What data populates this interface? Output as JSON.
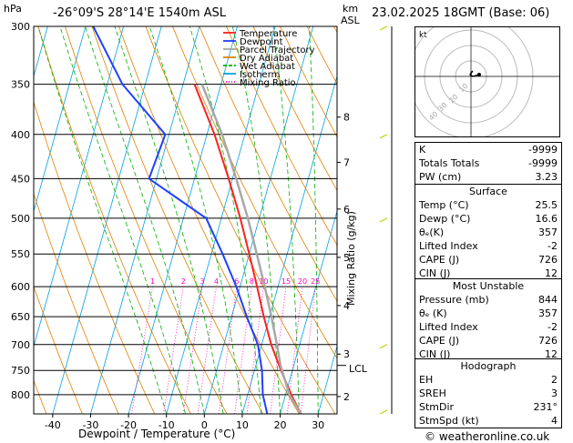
{
  "header": {
    "unit_left": "hPa",
    "location": "-26°09'S  28°14'E  1540m  ASL",
    "unit_right_top": "km",
    "unit_right_bottom": "ASL",
    "datetime": "23.02.2025  18GMT  (Base: 06)"
  },
  "footer": {
    "xlabel": "Dewpoint / Temperature (°C)",
    "copyright": "© weatheronline.co.uk"
  },
  "axes": {
    "mixing_ratio_label": "Mixing Ratio (g/kg)",
    "lcl_label": "LCL"
  },
  "colors": {
    "temperature": "#ff2020",
    "dewpoint": "#2040ff",
    "parcel": "#a8a8a8",
    "dry_adiabat": "#e08000",
    "wet_adiabat": "#00b000",
    "isotherm": "#00a0e0",
    "mixing_ratio": "#ff00c0",
    "wind": "#c0d000"
  },
  "chart_data": {
    "type": "line",
    "title": "",
    "pressure_levels": [
      300,
      350,
      400,
      450,
      500,
      550,
      600,
      650,
      700,
      750,
      800
    ],
    "temperature_ticks": [
      -40,
      -30,
      -20,
      -10,
      0,
      10,
      20,
      30
    ],
    "ylim_hpa": [
      300,
      842
    ],
    "xlim_c": [
      -45,
      35
    ],
    "skew_c_per_decade": 64,
    "km_ticks": [
      {
        "label": "8",
        "p": 382
      },
      {
        "label": "7",
        "p": 431
      },
      {
        "label": "6",
        "p": 488
      },
      {
        "label": "5",
        "p": 555
      },
      {
        "label": "4",
        "p": 631
      },
      {
        "label": "3",
        "p": 718
      },
      {
        "label": "2",
        "p": 804
      }
    ],
    "lcl_pressure": 740,
    "mixing_ratio_values": [
      1,
      2,
      3,
      4,
      6,
      8,
      10,
      15,
      20,
      25
    ],
    "legend": [
      {
        "name": "Temperature",
        "key": "temperature"
      },
      {
        "name": "Dewpoint",
        "key": "dewpoint"
      },
      {
        "name": "Parcel Trajectory",
        "key": "parcel"
      },
      {
        "name": "Dry Adiabat",
        "key": "dry_adiabat"
      },
      {
        "name": "Wet Adiabat",
        "key": "wet_adiabat"
      },
      {
        "name": "Isotherm",
        "key": "isotherm"
      },
      {
        "name": "Mixing Ratio",
        "key": "mixing_ratio"
      }
    ],
    "series": [
      {
        "name": "Temperature",
        "key": "temperature",
        "points": [
          [
            842,
            25.5
          ],
          [
            800,
            21.5
          ],
          [
            750,
            17
          ],
          [
            700,
            12.5
          ],
          [
            650,
            8.5
          ],
          [
            600,
            4.5
          ],
          [
            550,
            0
          ],
          [
            500,
            -5
          ],
          [
            450,
            -11
          ],
          [
            400,
            -18
          ],
          [
            350,
            -27
          ]
        ]
      },
      {
        "name": "Dewpoint",
        "key": "dewpoint",
        "points": [
          [
            842,
            16.6
          ],
          [
            800,
            14
          ],
          [
            750,
            12
          ],
          [
            700,
            9
          ],
          [
            650,
            4
          ],
          [
            600,
            -1
          ],
          [
            550,
            -7
          ],
          [
            500,
            -14
          ],
          [
            480,
            -21
          ],
          [
            450,
            -32
          ],
          [
            400,
            -31
          ],
          [
            350,
            -46
          ],
          [
            300,
            -58
          ]
        ]
      },
      {
        "name": "Parcel Trajectory",
        "key": "parcel",
        "points": [
          [
            842,
            25.5
          ],
          [
            800,
            21
          ],
          [
            740,
            16.5
          ],
          [
            700,
            14
          ],
          [
            650,
            10.5
          ],
          [
            600,
            6.5
          ],
          [
            550,
            2
          ],
          [
            500,
            -3
          ],
          [
            450,
            -9
          ],
          [
            400,
            -16
          ],
          [
            350,
            -25
          ]
        ]
      }
    ],
    "wind_barbs_p": [
      300,
      400,
      500,
      700,
      842
    ]
  },
  "hodograph": {
    "unit": "kt",
    "ring_labels": [
      "10",
      "20",
      "40",
      "30"
    ]
  },
  "indices": {
    "top": [
      {
        "label": "K",
        "value": "-9999"
      },
      {
        "label": "Totals Totals",
        "value": "-9999"
      },
      {
        "label": "PW (cm)",
        "value": "3.23"
      }
    ],
    "surface_title": "Surface",
    "surface": [
      {
        "label": "Temp (°C)",
        "value": "25.5"
      },
      {
        "label": "Dewp (°C)",
        "value": "16.6"
      },
      {
        "label": "θₑ(K)",
        "value": "357"
      },
      {
        "label": "Lifted Index",
        "value": "-2"
      },
      {
        "label": "CAPE (J)",
        "value": "726"
      },
      {
        "label": "CIN (J)",
        "value": "12"
      }
    ],
    "unstable_title": "Most Unstable",
    "unstable": [
      {
        "label": "Pressure (mb)",
        "value": "844"
      },
      {
        "label": "θₑ (K)",
        "value": "357"
      },
      {
        "label": "Lifted Index",
        "value": "-2"
      },
      {
        "label": "CAPE (J)",
        "value": "726"
      },
      {
        "label": "CIN (J)",
        "value": "12"
      }
    ],
    "hodograph_title": "Hodograph",
    "hodo": [
      {
        "label": "EH",
        "value": "2"
      },
      {
        "label": "SREH",
        "value": "3"
      },
      {
        "label": "StmDir",
        "value": "231°"
      },
      {
        "label": "StmSpd (kt)",
        "value": "4"
      }
    ]
  }
}
